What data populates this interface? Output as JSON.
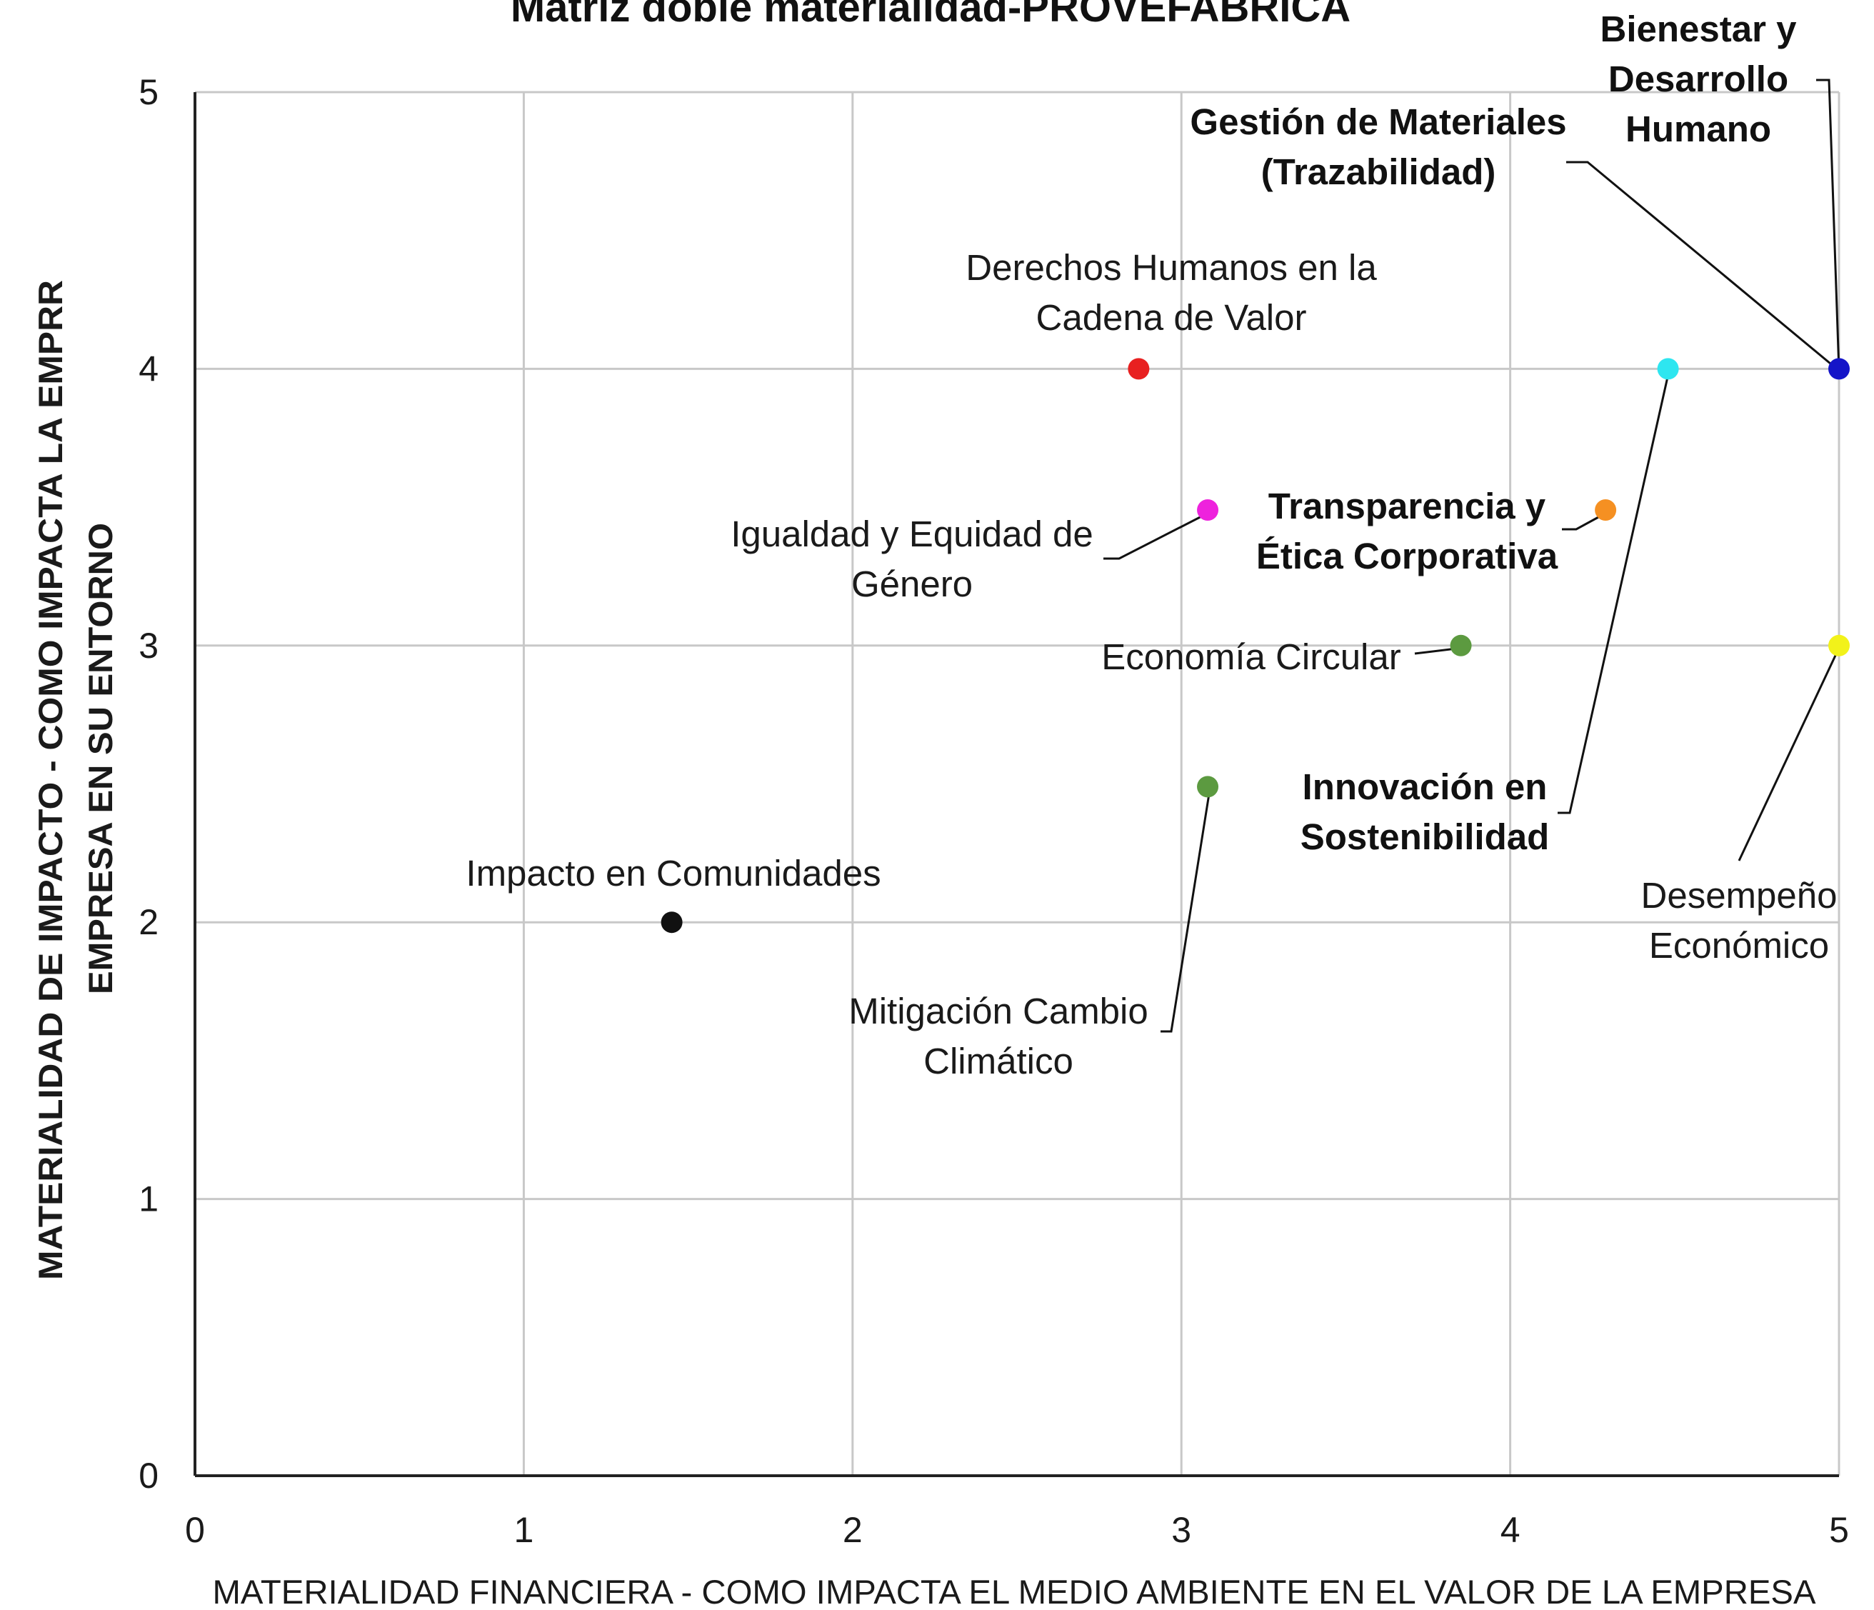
{
  "chart_data": {
    "type": "scatter",
    "title": "Matriz doble materialidad-PROVEFABRICA",
    "xlabel": "MATERIALIDAD FINANCIERA - COMO IMPACTA EL MEDIO AMBIENTE EN EL VALOR DE LA EMPRESA",
    "ylabel_lines": [
      "MATERIALIDAD DE IMPACTO - COMO IMPACTA LA EMPRR",
      "EMPRESA EN SU ENTORNO"
    ],
    "xlim": [
      0,
      5
    ],
    "ylim": [
      0,
      5
    ],
    "x_ticks": [
      "0",
      "1",
      "2",
      "3",
      "4",
      "5"
    ],
    "y_ticks": [
      "0",
      "1",
      "2",
      "3",
      "4",
      "5"
    ],
    "grid": true,
    "points": [
      {
        "lines": [
          "Bienestar y",
          "Desarrollo",
          "Humano"
        ],
        "x": 5.0,
        "y": 4.0,
        "color": "#1515c8",
        "bold": true
      },
      {
        "lines": [
          "Gestión de Materiales",
          "(Trazabilidad)"
        ],
        "x": 4.48,
        "y": 4.0,
        "color": "#2ee6f0",
        "bold": true
      },
      {
        "lines": [
          "Derechos Humanos en la",
          "Cadena de Valor"
        ],
        "x": 2.87,
        "y": 4.0,
        "color": "#e82020",
        "bold": false
      },
      {
        "lines": [
          "Igualdad y Equidad de",
          "Género"
        ],
        "x": 3.08,
        "y": 3.49,
        "color": "#ee22dd",
        "bold": false
      },
      {
        "lines": [
          "Transparencia y",
          "Ética Corporativa"
        ],
        "x": 4.29,
        "y": 3.49,
        "color": "#f59022",
        "bold": true
      },
      {
        "lines": [
          "Economía Circular"
        ],
        "x": 3.85,
        "y": 3.0,
        "color": "#5c9a40",
        "bold": false
      },
      {
        "lines": [
          "Desempeño",
          "Económico"
        ],
        "x": 5.0,
        "y": 3.0,
        "color": "#f2f21a",
        "bold": false
      },
      {
        "lines": [
          "Innovación en",
          "Sostenibilidad"
        ],
        "x": 4.48,
        "y": 4.0,
        "color": "#2ee6f0",
        "bold": true,
        "shares_point": true
      },
      {
        "lines": [
          "Mitigación Cambio",
          "Climático"
        ],
        "x": 3.08,
        "y": 2.49,
        "color": "#5c9a40",
        "bold": false
      },
      {
        "lines": [
          "Impacto en Comunidades"
        ],
        "x": 1.45,
        "y": 2.0,
        "color": "#111111",
        "bold": false
      }
    ]
  }
}
